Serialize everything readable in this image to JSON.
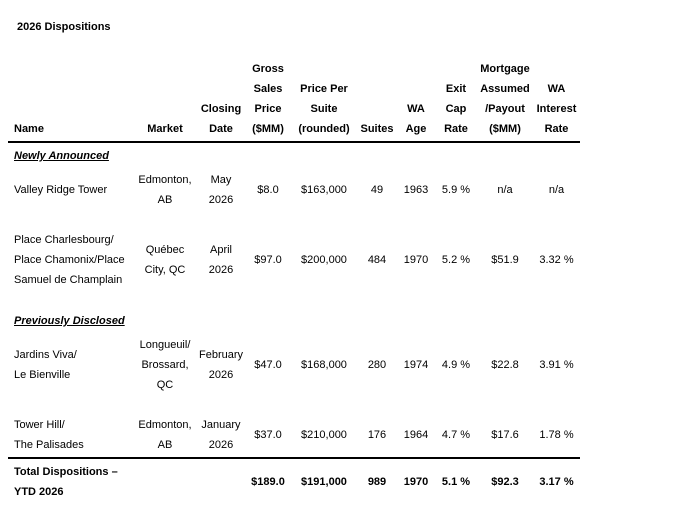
{
  "title": "2026 Dispositions",
  "colors": {
    "text": "#000000",
    "rule": "#000000",
    "background": "#ffffff"
  },
  "table": {
    "columns": [
      {
        "key": "name",
        "align": "left",
        "header_lines": [
          "",
          "",
          "",
          "Name"
        ]
      },
      {
        "key": "market",
        "align": "center",
        "header_lines": [
          "",
          "",
          "",
          "Market"
        ]
      },
      {
        "key": "closing_date",
        "align": "center",
        "header_lines": [
          "",
          "",
          "Closing",
          "Date"
        ]
      },
      {
        "key": "gross_sales_price",
        "align": "center",
        "header_lines": [
          "Gross",
          "Sales",
          "Price",
          "($MM)"
        ]
      },
      {
        "key": "price_per_suite",
        "align": "center",
        "header_lines": [
          "",
          "Price Per",
          "Suite",
          "(rounded)"
        ]
      },
      {
        "key": "suites",
        "align": "center",
        "header_lines": [
          "",
          "",
          "",
          "Suites"
        ]
      },
      {
        "key": "wa_age",
        "align": "center",
        "header_lines": [
          "",
          "",
          "WA",
          "Age"
        ]
      },
      {
        "key": "exit_cap_rate",
        "align": "center",
        "header_lines": [
          "",
          "Exit",
          "Cap",
          "Rate"
        ]
      },
      {
        "key": "mortgage_assumed_payout",
        "align": "center",
        "header_lines": [
          "Mortgage",
          "Assumed",
          "/Payout",
          "($MM)"
        ]
      },
      {
        "key": "wa_interest_rate",
        "align": "center",
        "header_lines": [
          "",
          "WA",
          "Interest",
          "Rate"
        ]
      }
    ],
    "sections": [
      {
        "label": "Newly Announced",
        "rows": [
          {
            "cells": [
              [
                "Valley Ridge Tower"
              ],
              [
                "Edmonton,",
                "AB"
              ],
              [
                "May",
                "2026"
              ],
              [
                "$8.0"
              ],
              [
                "$163,000"
              ],
              [
                "49"
              ],
              [
                "1963"
              ],
              [
                "5.9 %"
              ],
              [
                "n/a"
              ],
              [
                "n/a"
              ]
            ]
          },
          {
            "cells": [
              [
                "Place Charlesbourg/",
                "Place Chamonix/Place",
                "Samuel de Champlain"
              ],
              [
                "Québec",
                "City, QC"
              ],
              [
                "April",
                "2026"
              ],
              [
                "$97.0"
              ],
              [
                "$200,000"
              ],
              [
                "484"
              ],
              [
                "1970"
              ],
              [
                "5.2 %"
              ],
              [
                "$51.9"
              ],
              [
                "3.32 %"
              ]
            ]
          }
        ]
      },
      {
        "label": "Previously Disclosed",
        "rows": [
          {
            "cells": [
              [
                "Jardins Viva/",
                "Le Bienville"
              ],
              [
                "Longueuil/",
                "Brossard,",
                "QC"
              ],
              [
                "February",
                "2026"
              ],
              [
                "$47.0"
              ],
              [
                "$168,000"
              ],
              [
                "280"
              ],
              [
                "1974"
              ],
              [
                "4.9 %"
              ],
              [
                "$22.8"
              ],
              [
                "3.91 %"
              ]
            ]
          },
          {
            "cells": [
              [
                "Tower Hill/",
                "The Palisades"
              ],
              [
                "Edmonton,",
                "AB"
              ],
              [
                "January",
                "2026"
              ],
              [
                "$37.0"
              ],
              [
                "$210,000"
              ],
              [
                "176"
              ],
              [
                "1964"
              ],
              [
                "4.7 %"
              ],
              [
                "$17.6"
              ],
              [
                "1.78 %"
              ]
            ]
          }
        ]
      }
    ],
    "total_row": {
      "cells": [
        [
          "Total Dispositions –",
          "YTD 2026"
        ],
        [],
        [],
        [
          "$189.0"
        ],
        [
          "$191,000"
        ],
        [
          "989"
        ],
        [
          "1970"
        ],
        [
          "5.1 %"
        ],
        [
          "$92.3"
        ],
        [
          "3.17 %"
        ]
      ]
    }
  }
}
